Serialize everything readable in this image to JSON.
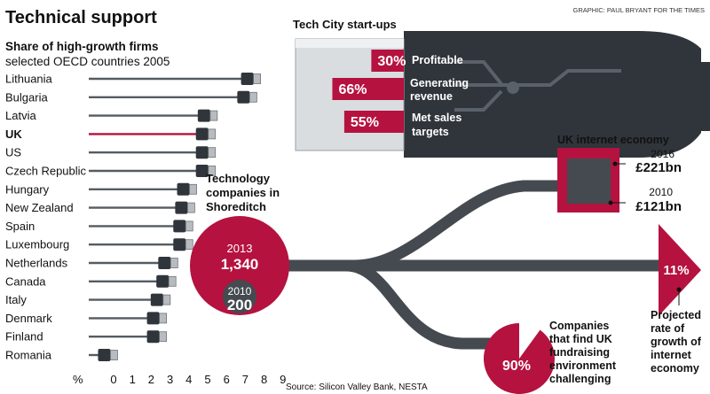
{
  "title": "Technical support",
  "credit": "GRAPHIC: PAUL BRYANT FOR THE TIMES",
  "source": "Source: Silicon Valley Bank, NESTA",
  "colors": {
    "accent": "#b5123f",
    "dark": "#444a50",
    "plug": "#2f353b",
    "text": "#111111"
  },
  "chart_data": [
    {
      "type": "bar",
      "title": "Share of high-growth firms",
      "subtitle": "selected OECD countries 2005",
      "xlabel": "%",
      "xlim": [
        0,
        9
      ],
      "ticks": [
        "0",
        "1",
        "2",
        "3",
        "4",
        "5",
        "6",
        "7",
        "8",
        "9"
      ],
      "highlight": "UK",
      "categories": [
        "Lithuania",
        "Bulgaria",
        "Latvia",
        "UK",
        "US",
        "Czech Republic",
        "Hungary",
        "New Zealand",
        "Spain",
        "Luxembourg",
        "Netherlands",
        "Canada",
        "Italy",
        "Denmark",
        "Finland",
        "Romania"
      ],
      "values": [
        8.0,
        7.8,
        5.7,
        5.6,
        5.6,
        5.6,
        4.6,
        4.5,
        4.4,
        4.4,
        3.6,
        3.5,
        3.2,
        3.0,
        3.0,
        0.4
      ]
    },
    {
      "type": "bar",
      "title": "Tech City start-ups",
      "categories": [
        "Profitable",
        "Generating revenue",
        "Met sales targets"
      ],
      "values": [
        30,
        66,
        55
      ],
      "value_labels": [
        "30%",
        "66%",
        "55%"
      ],
      "unit": "%"
    },
    {
      "type": "table",
      "title": "UK internet economy",
      "years": [
        "2016",
        "2010"
      ],
      "values": [
        "£221bn",
        "£121bn"
      ],
      "amounts_bn": [
        221,
        121
      ]
    },
    {
      "type": "table",
      "title": "Technology companies in Shoreditch",
      "years": [
        "2013",
        "2010"
      ],
      "values": [
        "1,340",
        "200"
      ],
      "counts": [
        1340,
        200
      ]
    },
    {
      "type": "pie",
      "label": "Companies that find UK fundraising environment challenging",
      "value": 90,
      "value_label": "90%"
    },
    {
      "type": "table",
      "label": "Projected rate of growth of internet economy",
      "value": 11,
      "value_label": "11%"
    }
  ],
  "labels": {
    "tech_city_title": "Tech City start-ups",
    "startup_labels": [
      "Profitable",
      "Generating",
      "revenue",
      "Met sales",
      "targets"
    ],
    "internet_title": "UK internet economy",
    "shoreditch_lines": [
      "Technology",
      "companies in",
      "Shoreditch"
    ],
    "fundraising_lines": [
      "Companies",
      "that find UK",
      "fundraising",
      "environment",
      "challenging"
    ],
    "growth_lines": [
      "Projected",
      "rate of",
      "growth of",
      "internet",
      "economy"
    ]
  }
}
